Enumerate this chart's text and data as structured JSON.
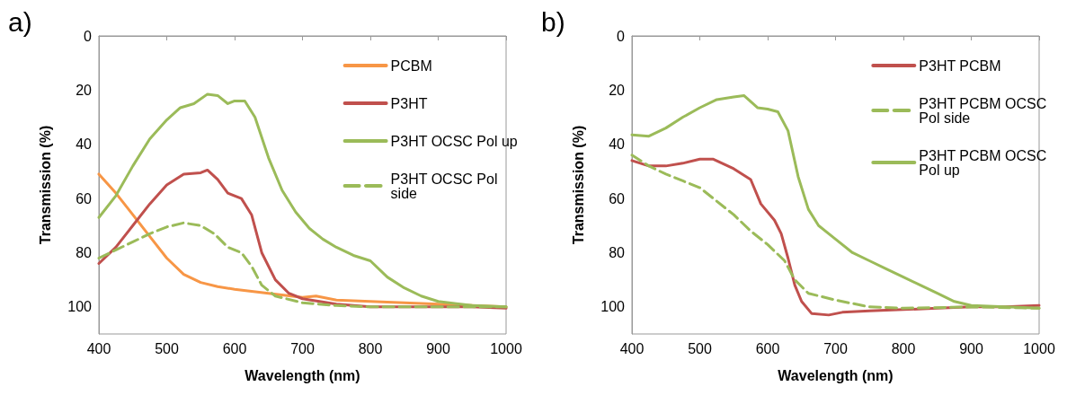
{
  "chart_data": [
    {
      "type": "line",
      "title": "a)",
      "xlabel": "Wavelength (nm)",
      "ylabel": "Transmission (%)",
      "xlim": [
        400,
        1000
      ],
      "xticks": [
        400,
        500,
        600,
        700,
        800,
        900,
        1000
      ],
      "ylim": [
        110,
        0
      ],
      "yticks": [
        0,
        20,
        40,
        60,
        80,
        100
      ],
      "grid": false,
      "legend": "top right",
      "marker": "none",
      "series": [
        {
          "name": "PCBM",
          "color": "#f79646",
          "line_style": "solid",
          "x": [
            400,
            425,
            450,
            475,
            500,
            525,
            550,
            575,
            600,
            650,
            700,
            720,
            750,
            800,
            850,
            900,
            950,
            1000
          ],
          "values": [
            51,
            58,
            66,
            74,
            82,
            88,
            91,
            92.5,
            93.5,
            95,
            96.5,
            96,
            97.5,
            98,
            98.5,
            99,
            99.5,
            100
          ]
        },
        {
          "name": "P3HT",
          "color": "#c0504d",
          "line_style": "solid",
          "x": [
            400,
            425,
            450,
            475,
            500,
            525,
            550,
            560,
            575,
            590,
            610,
            625,
            640,
            660,
            680,
            700,
            750,
            800,
            850,
            900,
            950,
            1000
          ],
          "values": [
            84,
            78,
            70,
            62,
            55,
            51,
            50.5,
            49.5,
            53,
            58,
            60,
            66,
            80,
            90,
            95,
            97,
            99,
            100,
            100,
            100,
            100,
            100.5
          ]
        },
        {
          "name": "P3HT OCSC Pol up",
          "color": "#9bbb59",
          "line_style": "solid",
          "x": [
            400,
            425,
            450,
            475,
            500,
            520,
            540,
            560,
            575,
            590,
            600,
            615,
            630,
            650,
            670,
            690,
            710,
            730,
            750,
            775,
            800,
            825,
            850,
            875,
            900,
            950,
            1000
          ],
          "values": [
            67,
            59,
            48,
            38,
            31,
            26.5,
            25,
            21.5,
            22,
            25,
            24,
            24,
            30,
            45,
            57,
            65,
            71,
            75,
            78,
            81,
            83,
            89,
            93,
            96,
            98,
            99.5,
            100
          ]
        },
        {
          "name": "P3HT OCSC Pol side",
          "color": "#9bbb59",
          "line_style": "dashed",
          "x": [
            400,
            425,
            450,
            475,
            500,
            525,
            550,
            570,
            590,
            610,
            625,
            640,
            660,
            700,
            750,
            800,
            900,
            1000
          ],
          "values": [
            82,
            79,
            76,
            73,
            70.5,
            69,
            70,
            73,
            78,
            80,
            85,
            92,
            96,
            98.5,
            99.5,
            100,
            100,
            100
          ]
        }
      ]
    },
    {
      "type": "line",
      "title": "b)",
      "xlabel": "Wavelength (nm)",
      "ylabel": "Transmission (%)",
      "xlim": [
        400,
        1000
      ],
      "xticks": [
        400,
        500,
        600,
        700,
        800,
        900,
        1000
      ],
      "ylim": [
        110,
        0
      ],
      "yticks": [
        0,
        20,
        40,
        60,
        80,
        100
      ],
      "grid": false,
      "legend": "top right",
      "marker": "none",
      "series": [
        {
          "name": "P3HT PCBM",
          "color": "#c0504d",
          "line_style": "solid",
          "x": [
            400,
            425,
            450,
            475,
            500,
            520,
            550,
            575,
            590,
            610,
            620,
            630,
            640,
            650,
            665,
            690,
            710,
            750,
            800,
            850,
            900,
            950,
            1000
          ],
          "values": [
            46,
            48,
            48,
            47,
            45.5,
            45.5,
            49,
            53,
            62,
            68,
            73,
            82,
            92,
            98,
            102.5,
            103,
            102,
            101.5,
            101,
            100.5,
            100,
            100,
            99.5
          ]
        },
        {
          "name": "P3HT PCBM OCSC Pol side",
          "color": "#9bbb59",
          "line_style": "dashed",
          "x": [
            400,
            425,
            450,
            475,
            500,
            525,
            550,
            575,
            600,
            625,
            640,
            660,
            700,
            750,
            800,
            900,
            1000
          ],
          "values": [
            44,
            48,
            51,
            53.5,
            56,
            61,
            66,
            72,
            77,
            83,
            90,
            95,
            97.5,
            100,
            100.5,
            100,
            100.5
          ]
        },
        {
          "name": "P3HT PCBM OCSC Pol up",
          "color": "#9bbb59",
          "line_style": "solid",
          "x": [
            400,
            425,
            450,
            475,
            500,
            525,
            550,
            565,
            585,
            600,
            615,
            630,
            645,
            660,
            675,
            700,
            725,
            750,
            775,
            800,
            825,
            850,
            875,
            900,
            950,
            1000
          ],
          "values": [
            36.5,
            37,
            34,
            30,
            26.5,
            23.5,
            22.5,
            22,
            26.5,
            27,
            28,
            35,
            52,
            64,
            70,
            75,
            80,
            83,
            86,
            89,
            92,
            95,
            98,
            99.5,
            100,
            100.5
          ]
        }
      ]
    }
  ]
}
